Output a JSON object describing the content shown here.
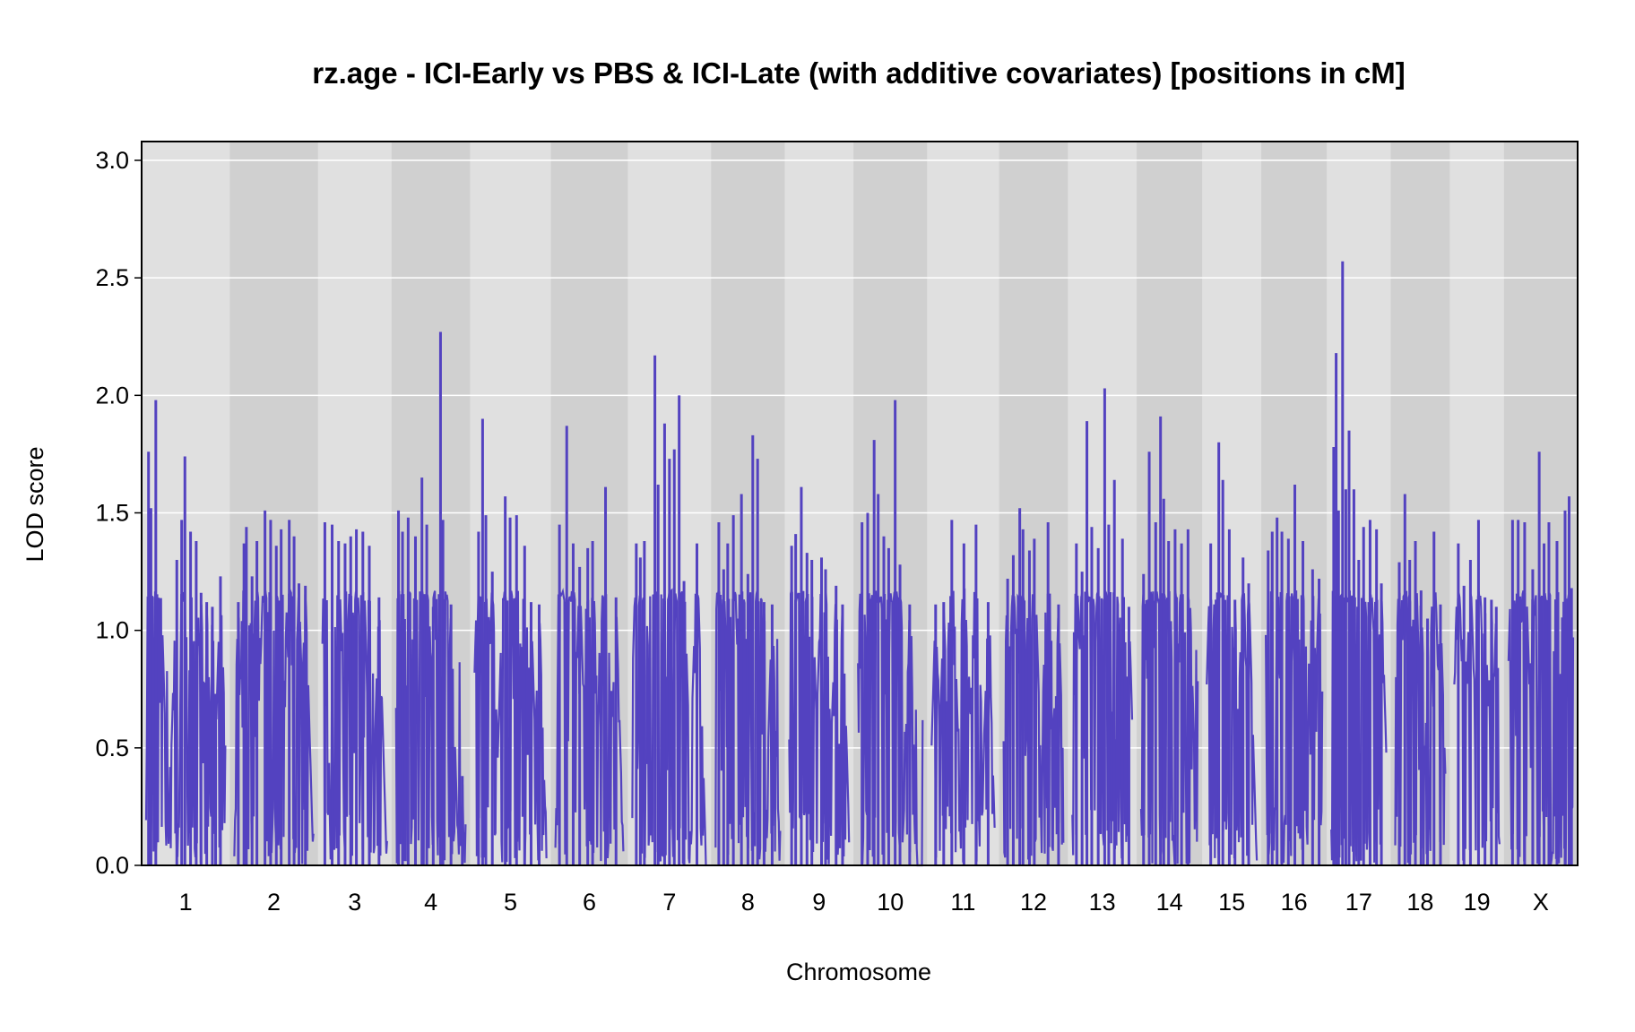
{
  "chart_data": {
    "type": "line",
    "title": "rz.age - ICI-Early vs PBS & ICI-Late (with additive covariates) [positions in cM]",
    "xlabel": "Chromosome",
    "ylabel": "LOD score",
    "ylim": [
      0,
      3.08
    ],
    "yticks": [
      "0.0",
      "0.5",
      "1.0",
      "1.5",
      "2.0",
      "2.5",
      "3.0"
    ],
    "grid": true,
    "line_color": "#5342C0",
    "chromosomes": [
      {
        "label": "1",
        "length": 98,
        "peaks": [
          [
            3,
            1.76
          ],
          [
            6,
            1.52
          ],
          [
            12,
            1.98
          ],
          [
            38,
            1.3
          ],
          [
            44,
            1.47
          ],
          [
            48,
            1.74
          ],
          [
            55,
            1.42
          ],
          [
            62,
            1.38
          ],
          [
            68,
            1.16
          ],
          [
            75,
            1.12
          ],
          [
            82,
            1.1
          ],
          [
            86,
            0.73
          ],
          [
            92,
            1.23
          ]
        ]
      },
      {
        "label": "2",
        "length": 98,
        "peaks": [
          [
            5,
            1.12
          ],
          [
            12,
            1.37
          ],
          [
            15,
            1.44
          ],
          [
            22,
            1.23
          ],
          [
            28,
            1.38
          ],
          [
            38,
            1.51
          ],
          [
            45,
            1.47
          ],
          [
            52,
            1.36
          ],
          [
            58,
            1.43
          ],
          [
            68,
            1.47
          ],
          [
            74,
            1.4
          ],
          [
            80,
            1.2
          ],
          [
            88,
            1.19
          ]
        ]
      },
      {
        "label": "3",
        "length": 80,
        "peaks": [
          [
            3,
            1.46
          ],
          [
            12,
            1.45
          ],
          [
            20,
            1.38
          ],
          [
            28,
            1.37
          ],
          [
            35,
            1.4
          ],
          [
            42,
            1.43
          ],
          [
            50,
            1.42
          ],
          [
            58,
            1.36
          ],
          [
            70,
            1.14
          ]
        ]
      },
      {
        "label": "4",
        "length": 86,
        "peaks": [
          [
            3,
            1.51
          ],
          [
            8,
            1.42
          ],
          [
            15,
            1.48
          ],
          [
            24,
            1.4
          ],
          [
            32,
            1.65
          ],
          [
            38,
            1.45
          ],
          [
            46,
            1.1
          ],
          [
            55,
            2.27
          ],
          [
            58,
            1.47
          ],
          [
            68,
            1.11
          ],
          [
            82,
            0.38
          ]
        ]
      },
      {
        "label": "5",
        "length": 89,
        "peaks": [
          [
            5,
            1.42
          ],
          [
            10,
            1.9
          ],
          [
            14,
            1.49
          ],
          [
            22,
            1.25
          ],
          [
            38,
            1.57
          ],
          [
            44,
            1.48
          ],
          [
            52,
            1.49
          ],
          [
            62,
            1.36
          ],
          [
            70,
            1.12
          ],
          [
            80,
            1.11
          ]
        ]
      },
      {
        "label": "6",
        "length": 84,
        "peaks": [
          [
            5,
            1.45
          ],
          [
            14,
            1.87
          ],
          [
            22,
            1.37
          ],
          [
            30,
            1.27
          ],
          [
            40,
            1.35
          ],
          [
            46,
            1.38
          ],
          [
            62,
            1.61
          ],
          [
            75,
            1.14
          ]
        ]
      },
      {
        "label": "7",
        "length": 92,
        "peaks": [
          [
            5,
            1.37
          ],
          [
            10,
            1.31
          ],
          [
            15,
            1.38
          ],
          [
            28,
            2.17
          ],
          [
            32,
            1.62
          ],
          [
            40,
            1.88
          ],
          [
            46,
            1.73
          ],
          [
            52,
            1.77
          ],
          [
            58,
            2.0
          ],
          [
            64,
            1.21
          ],
          [
            80,
            1.37
          ]
        ]
      },
      {
        "label": "8",
        "length": 80,
        "peaks": [
          [
            4,
            1.46
          ],
          [
            10,
            1.26
          ],
          [
            15,
            1.37
          ],
          [
            22,
            1.49
          ],
          [
            32,
            1.58
          ],
          [
            40,
            1.24
          ],
          [
            46,
            1.83
          ],
          [
            52,
            1.73
          ],
          [
            60,
            1.12
          ],
          [
            70,
            1.11
          ]
        ]
      },
      {
        "label": "9",
        "length": 74,
        "peaks": [
          [
            3,
            1.36
          ],
          [
            8,
            1.41
          ],
          [
            15,
            1.61
          ],
          [
            22,
            1.33
          ],
          [
            28,
            1.3
          ],
          [
            40,
            1.31
          ],
          [
            45,
            1.26
          ],
          [
            58,
            1.19
          ],
          [
            66,
            1.11
          ]
        ]
      },
      {
        "label": "10",
        "length": 80,
        "peaks": [
          [
            5,
            1.46
          ],
          [
            12,
            1.5
          ],
          [
            20,
            1.81
          ],
          [
            25,
            1.58
          ],
          [
            32,
            1.4
          ],
          [
            38,
            1.35
          ],
          [
            46,
            1.98
          ],
          [
            52,
            1.28
          ],
          [
            64,
            1.11
          ]
        ]
      },
      {
        "label": "11",
        "length": 78,
        "peaks": [
          [
            5,
            1.11
          ],
          [
            15,
            1.12
          ],
          [
            25,
            1.47
          ],
          [
            40,
            1.37
          ],
          [
            55,
            1.45
          ],
          [
            70,
            1.12
          ]
        ]
      },
      {
        "label": "12",
        "length": 74,
        "peaks": [
          [
            5,
            1.22
          ],
          [
            12,
            1.32
          ],
          [
            20,
            1.52
          ],
          [
            24,
            1.43
          ],
          [
            32,
            1.34
          ],
          [
            38,
            1.39
          ],
          [
            55,
            1.46
          ],
          [
            68,
            1.11
          ]
        ]
      },
      {
        "label": "13",
        "length": 74,
        "peaks": [
          [
            5,
            1.37
          ],
          [
            12,
            1.25
          ],
          [
            18,
            1.89
          ],
          [
            24,
            1.44
          ],
          [
            32,
            1.35
          ],
          [
            40,
            2.03
          ],
          [
            45,
            1.45
          ],
          [
            52,
            1.64
          ],
          [
            62,
            1.39
          ],
          [
            70,
            1.1
          ]
        ]
      },
      {
        "label": "14",
        "length": 70,
        "peaks": [
          [
            3,
            1.24
          ],
          [
            10,
            1.76
          ],
          [
            18,
            1.46
          ],
          [
            24,
            1.91
          ],
          [
            28,
            1.56
          ],
          [
            34,
            1.38
          ],
          [
            42,
            1.43
          ],
          [
            50,
            1.37
          ],
          [
            58,
            1.43
          ]
        ]
      },
      {
        "label": "15",
        "length": 62,
        "peaks": [
          [
            5,
            1.37
          ],
          [
            15,
            1.8
          ],
          [
            20,
            1.64
          ],
          [
            28,
            1.43
          ],
          [
            35,
            1.13
          ],
          [
            45,
            1.31
          ],
          [
            52,
            1.2
          ]
        ]
      },
      {
        "label": "16",
        "length": 70,
        "peaks": [
          [
            3,
            1.34
          ],
          [
            8,
            1.42
          ],
          [
            14,
            1.48
          ],
          [
            20,
            1.42
          ],
          [
            28,
            1.39
          ],
          [
            36,
            1.62
          ],
          [
            46,
            1.38
          ],
          [
            58,
            1.26
          ],
          [
            66,
            1.22
          ]
        ]
      },
      {
        "label": "17",
        "length": 68,
        "peaks": [
          [
            3,
            1.78
          ],
          [
            6,
            2.18
          ],
          [
            9,
            1.51
          ],
          [
            14,
            2.57
          ],
          [
            18,
            1.6
          ],
          [
            22,
            1.85
          ],
          [
            28,
            1.6
          ],
          [
            34,
            1.3
          ],
          [
            40,
            1.44
          ],
          [
            48,
            1.47
          ],
          [
            56,
            1.43
          ],
          [
            62,
            1.2
          ]
        ]
      },
      {
        "label": "18",
        "length": 62,
        "peaks": [
          [
            5,
            1.29
          ],
          [
            12,
            1.58
          ],
          [
            18,
            1.3
          ],
          [
            25,
            1.38
          ],
          [
            32,
            1.17
          ],
          [
            40,
            1.05
          ],
          [
            48,
            1.42
          ],
          [
            56,
            1.11
          ]
        ]
      },
      {
        "label": "19",
        "length": 56,
        "peaks": [
          [
            5,
            1.37
          ],
          [
            12,
            1.19
          ],
          [
            20,
            1.3
          ],
          [
            30,
            1.47
          ],
          [
            38,
            1.14
          ],
          [
            46,
            1.13
          ],
          [
            52,
            1.1
          ]
        ]
      },
      {
        "label": "X",
        "length": 80,
        "peaks": [
          [
            5,
            1.47
          ],
          [
            12,
            1.47
          ],
          [
            20,
            1.46
          ],
          [
            30,
            1.26
          ],
          [
            38,
            1.76
          ],
          [
            44,
            1.37
          ],
          [
            50,
            1.46
          ],
          [
            60,
            1.38
          ],
          [
            70,
            1.51
          ],
          [
            75,
            1.57
          ],
          [
            78,
            1.18
          ]
        ]
      }
    ]
  }
}
